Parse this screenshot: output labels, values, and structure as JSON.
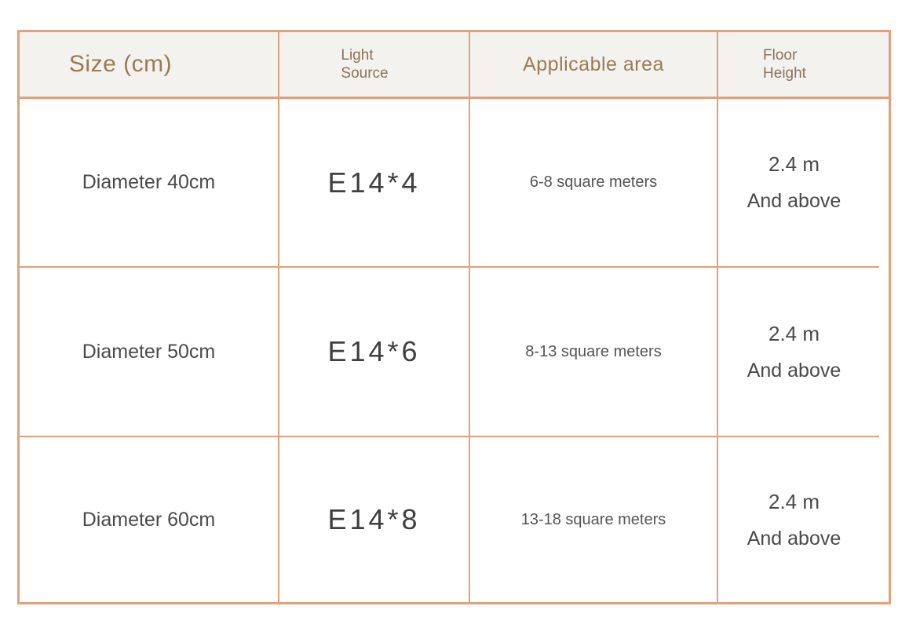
{
  "table": {
    "border_color": "#dfa17e",
    "header_bg": "#f4f2ef",
    "header_text_color": "#9a7b53",
    "body_text_color": "#4a4a4a",
    "header": {
      "size": "Size (cm)",
      "light_line1": "Light",
      "light_line2": "Source",
      "area": "Applicable area",
      "floor_line1": "Floor",
      "floor_line2": "Height"
    },
    "rows": [
      {
        "size": "Diameter 40cm",
        "light_source": "E14*4",
        "area": "6-8 square meters",
        "height_line1": "2.4 m",
        "height_line2": "And above"
      },
      {
        "size": "Diameter 50cm",
        "light_source": "E14*6",
        "area": "8-13 square meters",
        "height_line1": "2.4 m",
        "height_line2": "And above"
      },
      {
        "size": "Diameter 60cm",
        "light_source": "E14*8",
        "area": "13-18 square meters",
        "height_line1": "2.4 m",
        "height_line2": "And above"
      }
    ]
  }
}
